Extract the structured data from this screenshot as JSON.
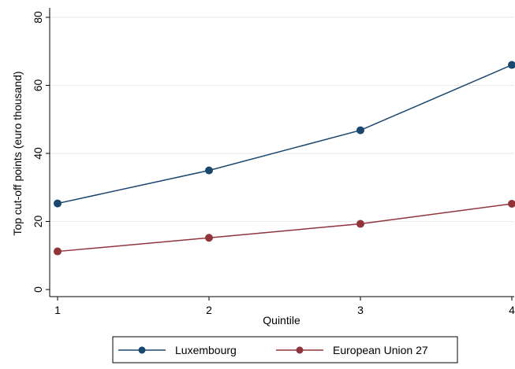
{
  "chart_data": {
    "type": "line",
    "x_label": "Quintile",
    "y_label": "Top cut-off points (euro thousand)",
    "x": [
      1,
      2,
      3,
      4
    ],
    "series": [
      {
        "name": "Luxembourg",
        "color": "#1a476f",
        "values": [
          25.3,
          35.0,
          46.8,
          66.0
        ]
      },
      {
        "name": "European Union 27",
        "color": "#90353b",
        "values": [
          11.2,
          15.2,
          19.3,
          25.2
        ]
      }
    ],
    "xlim": [
      1,
      4
    ],
    "xticks": [
      1,
      2,
      3,
      4
    ],
    "ylim": [
      0,
      80
    ],
    "yticks": [
      0,
      20,
      40,
      60,
      80
    ],
    "grid": true,
    "legend": "bottom"
  }
}
